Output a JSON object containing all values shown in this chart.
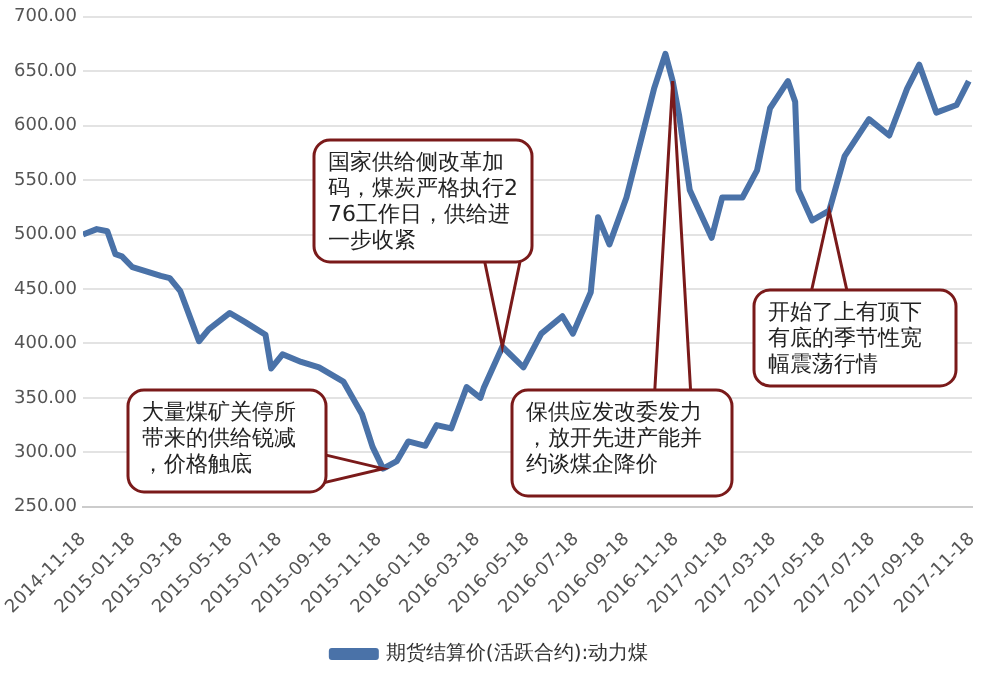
{
  "chart_data": {
    "type": "line",
    "x": [
      "2014-11-18",
      "2014-12-05",
      "2014-12-18",
      "2014-12-28",
      "2015-01-05",
      "2015-01-18",
      "2015-02-22",
      "2015-03-05",
      "2015-03-18",
      "2015-04-01",
      "2015-04-10",
      "2015-04-22",
      "2015-05-18",
      "2015-06-05",
      "2015-07-01",
      "2015-07-08",
      "2015-07-22",
      "2015-08-14",
      "2015-09-05",
      "2015-10-05",
      "2015-10-28",
      "2015-11-10",
      "2015-11-23",
      "2015-12-10",
      "2015-12-24",
      "2016-01-14",
      "2016-01-28",
      "2016-02-15",
      "2016-03-05",
      "2016-03-22",
      "2016-03-26",
      "2016-04-18",
      "2016-05-14",
      "2016-06-05",
      "2016-07-01",
      "2016-07-14",
      "2016-08-05",
      "2016-08-14",
      "2016-08-28",
      "2016-09-18",
      "2016-10-22",
      "2016-11-05",
      "2016-11-14",
      "2016-11-22",
      "2016-12-05",
      "2017-01-01",
      "2017-01-14",
      "2017-02-08",
      "2017-02-26",
      "2017-03-14",
      "2017-04-05",
      "2017-04-14",
      "2017-04-18",
      "2017-05-05",
      "2017-05-26",
      "2017-06-14",
      "2017-07-14",
      "2017-08-08",
      "2017-08-30",
      "2017-09-14",
      "2017-10-05",
      "2017-10-30",
      "2017-11-14"
    ],
    "series": [
      {
        "name": "期货结算价(活跃合约):动力煤",
        "color": "#4a72a8",
        "values": [
          500,
          505,
          503,
          482,
          480,
          470,
          462,
          460,
          448,
          420,
          402,
          413,
          428,
          420,
          408,
          377,
          390,
          383,
          378,
          365,
          335,
          305,
          285,
          292,
          310,
          306,
          325,
          322,
          360,
          350,
          359,
          397,
          378,
          409,
          425,
          409,
          447,
          516,
          491,
          534,
          634,
          666,
          641,
          609,
          541,
          497,
          534,
          534,
          559,
          616,
          641,
          622,
          541,
          513,
          522,
          572,
          606,
          591,
          634,
          656,
          612,
          619,
          641
        ]
      }
    ],
    "xlim": [
      "2014-11-18",
      "2017-11-18"
    ],
    "xticks": [
      "2014-11-18",
      "2015-01-18",
      "2015-03-18",
      "2015-05-18",
      "2015-07-18",
      "2015-09-18",
      "2015-11-18",
      "2016-01-18",
      "2016-03-18",
      "2016-05-18",
      "2016-07-18",
      "2016-09-18",
      "2016-11-18",
      "2017-01-18",
      "2017-03-18",
      "2017-05-18",
      "2017-07-18",
      "2017-09-18",
      "2017-11-18"
    ],
    "ylim": [
      250,
      700
    ],
    "yticks": [
      {
        "value": 250,
        "label": "250.00"
      },
      {
        "value": 300,
        "label": "300.00"
      },
      {
        "value": 350,
        "label": "350.00"
      },
      {
        "value": 400,
        "label": "400.00"
      },
      {
        "value": 450,
        "label": "450.00"
      },
      {
        "value": 500,
        "label": "500.00"
      },
      {
        "value": 550,
        "label": "550.00"
      },
      {
        "value": 600,
        "label": "600.00"
      },
      {
        "value": 650,
        "label": "650.00"
      },
      {
        "value": 700,
        "label": "700.00"
      }
    ],
    "grid": "y",
    "legend": "bottom",
    "marker": "none",
    "line_style": "solid",
    "annotations": [
      {
        "text": "国家供给侧改革加码，煤炭严格执行276工作日，供给进一步收紧",
        "x": "2016-04-18",
        "y": 397
      },
      {
        "text": "大量煤矿关停所带来的供给锐减，价格触底",
        "x": "2015-11-23",
        "y": 285
      },
      {
        "text": "保供应发改委发力，放开先进产能并约谈煤企降价",
        "x": "2016-11-14",
        "y": 641
      },
      {
        "text": "开始了上有顶下有底的季节性宽幅震荡行情",
        "x": "2017-05-26",
        "y": 522
      }
    ]
  }
}
